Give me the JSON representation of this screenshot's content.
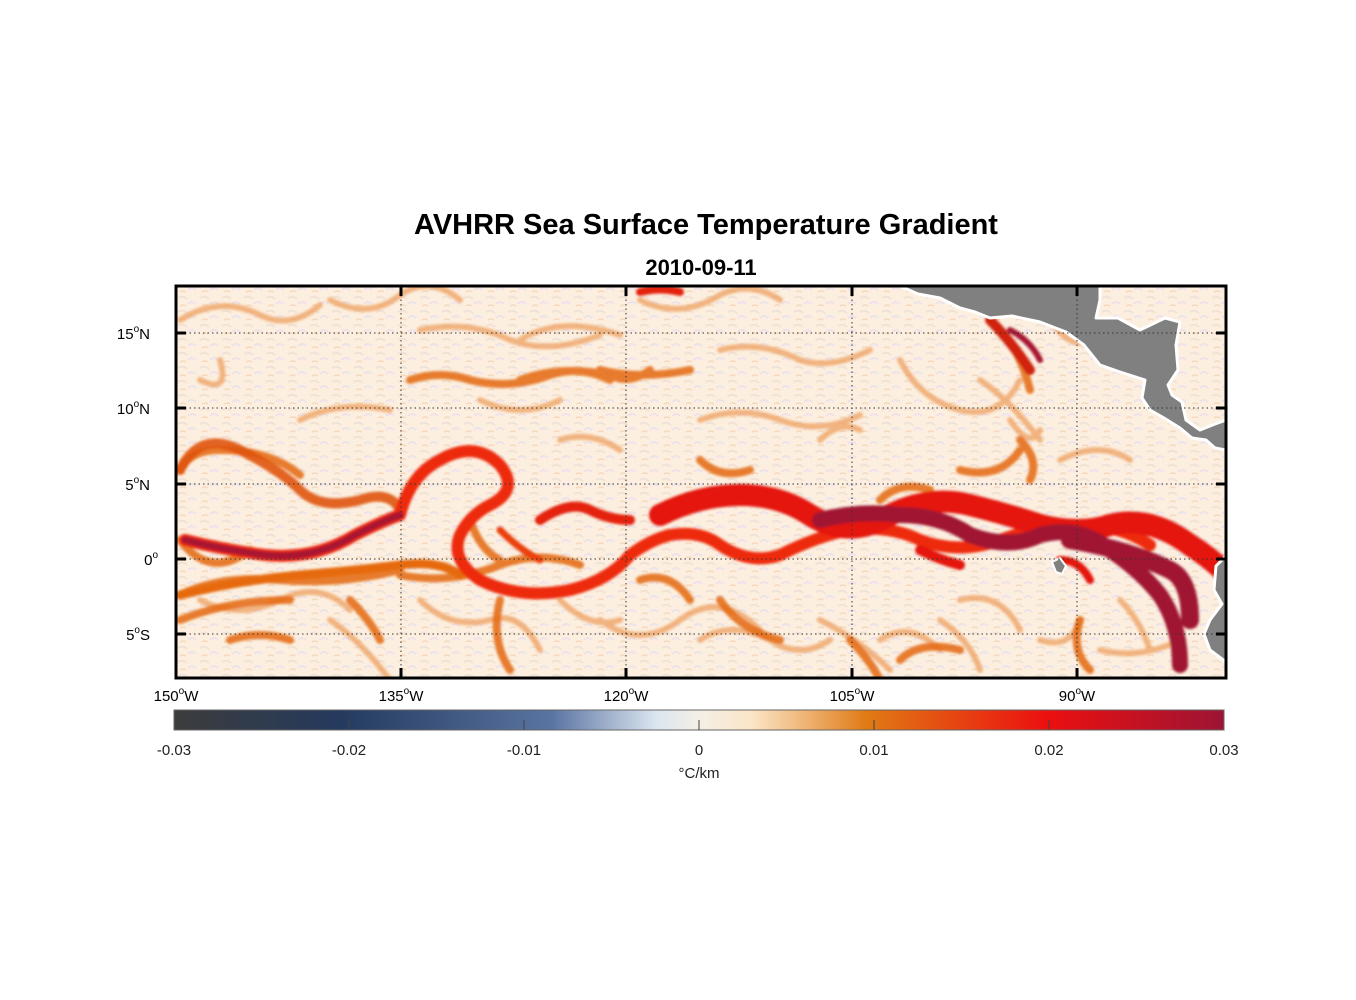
{
  "title": "AVHRR Sea Surface Temperature Gradient",
  "subtitle": "2010-09-11",
  "map": {
    "lon_range": [
      -150,
      -80
    ],
    "lat_range": [
      -8,
      18
    ],
    "lon_ticks": [
      {
        "value": -150,
        "label": "150",
        "sup": "o",
        "hem": "W"
      },
      {
        "value": -135,
        "label": "135",
        "sup": "o",
        "hem": "W"
      },
      {
        "value": -120,
        "label": "120",
        "sup": "o",
        "hem": "W"
      },
      {
        "value": -105,
        "label": "105",
        "sup": "o",
        "hem": "W"
      },
      {
        "value": -90,
        "label": "90",
        "sup": "o",
        "hem": "W"
      }
    ],
    "lat_ticks": [
      {
        "value": 15,
        "label": "15",
        "sup": "o",
        "hem": "N"
      },
      {
        "value": 10,
        "label": "10",
        "sup": "o",
        "hem": "N"
      },
      {
        "value": 5,
        "label": "5",
        "sup": "o",
        "hem": "N"
      },
      {
        "value": 0,
        "label": "0",
        "sup": "o",
        "hem": ""
      },
      {
        "value": -5,
        "label": "5",
        "sup": "o",
        "hem": "S"
      }
    ],
    "land_color": "#808080",
    "grid": "dotted"
  },
  "colorbar": {
    "range": [
      -0.03,
      0.03
    ],
    "ticks": [
      "-0.03",
      "-0.02",
      "-0.01",
      "0",
      "0.01",
      "0.02",
      "0.03"
    ],
    "label": "°C/km",
    "colors": [
      "#3c3c3c",
      "#243a5e",
      "#5a74a2",
      "#dce6f0",
      "#fbe6c8",
      "#e07a14",
      "#ec1010",
      "#9c1434"
    ]
  }
}
